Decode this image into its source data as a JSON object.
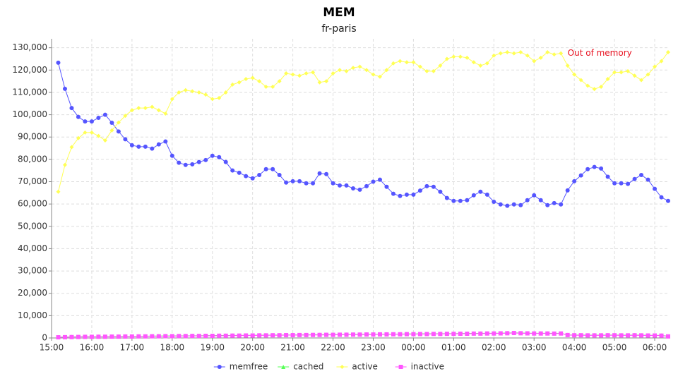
{
  "chart_data": {
    "type": "line",
    "title": "MEM",
    "subtitle": "fr-paris",
    "x": [
      "15:10",
      "15:20",
      "15:30",
      "15:40",
      "15:50",
      "16:00",
      "16:10",
      "16:20",
      "16:30",
      "16:40",
      "16:50",
      "17:00",
      "17:10",
      "17:20",
      "17:30",
      "17:40",
      "17:50",
      "18:00",
      "18:10",
      "18:20",
      "18:30",
      "18:40",
      "18:50",
      "19:00",
      "19:10",
      "19:20",
      "19:30",
      "19:40",
      "19:50",
      "20:00",
      "20:10",
      "20:20",
      "20:30",
      "20:40",
      "20:50",
      "21:00",
      "21:10",
      "21:20",
      "21:30",
      "21:40",
      "21:50",
      "22:00",
      "22:10",
      "22:20",
      "22:30",
      "22:40",
      "22:50",
      "23:00",
      "23:10",
      "23:20",
      "23:30",
      "23:40",
      "23:50",
      "00:00",
      "00:10",
      "00:20",
      "00:30",
      "00:40",
      "00:50",
      "01:00",
      "01:10",
      "01:20",
      "01:30",
      "01:40",
      "01:50",
      "02:00",
      "02:10",
      "02:20",
      "02:30",
      "02:40",
      "02:50",
      "03:00",
      "03:10",
      "03:20",
      "03:30",
      "03:40",
      "03:50",
      "04:00",
      "04:10",
      "04:20",
      "04:30",
      "04:40",
      "04:50",
      "05:00",
      "05:10",
      "05:20",
      "05:30",
      "05:40",
      "05:50",
      "06:00",
      "06:10",
      "06:20"
    ],
    "series": [
      {
        "name": "memfree",
        "color": "#5555ff",
        "marker": "circle",
        "values": [
          123300,
          111600,
          103000,
          99000,
          97000,
          97000,
          98600,
          100000,
          96400,
          92500,
          89000,
          86300,
          85700,
          85700,
          84800,
          86700,
          88000,
          81600,
          78500,
          77500,
          77800,
          78800,
          79700,
          81600,
          81000,
          78800,
          75000,
          74000,
          72500,
          71500,
          73000,
          75600,
          75600,
          73000,
          69600,
          70200,
          70200,
          69300,
          69300,
          73700,
          73400,
          69300,
          68300,
          68300,
          67000,
          66400,
          68000,
          70000,
          70900,
          67700,
          64600,
          63600,
          64200,
          64200,
          66000,
          68000,
          67700,
          65500,
          62700,
          61400,
          61400,
          61700,
          63900,
          65500,
          64200,
          61000,
          59800,
          59200,
          59800,
          59500,
          61700,
          63900,
          61700,
          59500,
          60400,
          59800,
          66100,
          70200,
          72800,
          75600,
          76600,
          75900,
          72200,
          69300,
          69300,
          69000,
          71200,
          73000,
          70900,
          66800,
          63000,
          61400
        ]
      },
      {
        "name": "cached",
        "color": "#55ff55",
        "marker": "triangle",
        "values": [
          400,
          450,
          500,
          550,
          600,
          600,
          650,
          650,
          700,
          700,
          750,
          750,
          800,
          800,
          850,
          850,
          900,
          900,
          950,
          950,
          1000,
          1000,
          1050,
          1050,
          1100,
          1100,
          1150,
          1150,
          1200,
          1200,
          1250,
          1250,
          1300,
          1300,
          1350,
          1350,
          1400,
          1400,
          1450,
          1450,
          1500,
          1500,
          1550,
          1550,
          1600,
          1600,
          1650,
          1650,
          1700,
          1700,
          1750,
          1750,
          1800,
          1800,
          1850,
          1850,
          1900,
          1900,
          1950,
          1950,
          2000,
          2000,
          2050,
          2050,
          2100,
          2100,
          2150,
          2200,
          2300,
          2200,
          2150,
          2100,
          2100,
          2100,
          2050,
          2100,
          1400,
          1300,
          1300,
          1250,
          1250,
          1250,
          1300,
          1300,
          1250,
          1250,
          1300,
          1250,
          1200,
          1200,
          1150,
          800
        ]
      },
      {
        "name": "active",
        "color": "#ffff55",
        "marker": "diamond",
        "values": [
          65500,
          77500,
          85500,
          89500,
          92000,
          92000,
          90500,
          88500,
          93000,
          96500,
          99500,
          102000,
          103000,
          103000,
          103500,
          102000,
          100500,
          107000,
          110000,
          111000,
          110500,
          110000,
          109000,
          107000,
          107500,
          110000,
          113500,
          114500,
          116000,
          116500,
          115000,
          112500,
          112500,
          115000,
          118500,
          118000,
          117500,
          118500,
          119000,
          114500,
          115000,
          118500,
          120000,
          119500,
          121000,
          121500,
          120000,
          118000,
          117000,
          120000,
          123000,
          124000,
          123500,
          123500,
          121500,
          119500,
          119500,
          122000,
          125000,
          126000,
          126000,
          125500,
          123500,
          122000,
          123000,
          126500,
          127500,
          128000,
          127500,
          128000,
          126500,
          124000,
          125500,
          128000,
          127000,
          127500,
          122000,
          118000,
          115500,
          113000,
          111500,
          112500,
          116000,
          119000,
          119000,
          119500,
          117500,
          115500,
          118000,
          121500,
          124000,
          128000
        ]
      },
      {
        "name": "inactive",
        "color": "#ff55ff",
        "marker": "square",
        "values": [
          300,
          350,
          400,
          450,
          500,
          500,
          550,
          550,
          600,
          600,
          650,
          650,
          700,
          700,
          750,
          750,
          800,
          800,
          850,
          850,
          900,
          900,
          950,
          950,
          1000,
          1000,
          1050,
          1050,
          1100,
          1100,
          1150,
          1150,
          1200,
          1200,
          1250,
          1250,
          1300,
          1300,
          1350,
          1350,
          1400,
          1400,
          1450,
          1450,
          1500,
          1500,
          1550,
          1550,
          1600,
          1600,
          1650,
          1650,
          1700,
          1700,
          1750,
          1750,
          1800,
          1800,
          1850,
          1850,
          1900,
          1900,
          1950,
          1950,
          2000,
          2000,
          2050,
          2100,
          2200,
          2100,
          2050,
          2000,
          2000,
          2000,
          1950,
          2000,
          1300,
          1200,
          1200,
          1150,
          1150,
          1150,
          1200,
          1200,
          1150,
          1150,
          1200,
          1150,
          1100,
          1100,
          1050,
          700
        ]
      }
    ],
    "xlim": [
      "15:00",
      "06:20"
    ],
    "xticks": [
      "15:00",
      "16:00",
      "17:00",
      "18:00",
      "19:00",
      "20:00",
      "21:00",
      "22:00",
      "23:00",
      "00:00",
      "01:00",
      "02:00",
      "03:00",
      "04:00",
      "05:00",
      "06:00"
    ],
    "ylim": [
      0,
      134000
    ],
    "yticks": [
      0,
      {
        "value": 10000,
        "label": "10,000"
      },
      {
        "value": 20000,
        "label": "20,000"
      },
      {
        "value": 30000,
        "label": "30,000"
      },
      {
        "value": 40000,
        "label": "40,000"
      },
      {
        "value": 50000,
        "label": "50,000"
      },
      {
        "value": 60000,
        "label": "60,000"
      },
      {
        "value": 70000,
        "label": "70,000"
      },
      {
        "value": 80000,
        "label": "80,000"
      },
      {
        "value": 90000,
        "label": "90,000"
      },
      {
        "value": 100000,
        "label": "100,000"
      },
      {
        "value": 110000,
        "label": "110,000"
      },
      {
        "value": 120000,
        "label": "120,000"
      },
      {
        "value": 130000,
        "label": "130,000"
      }
    ],
    "grid": true,
    "annotations": [
      {
        "text": "Out of memory",
        "x": "03:50",
        "y": 127500,
        "color": "#e8101f"
      }
    ],
    "legend": "bottom"
  }
}
